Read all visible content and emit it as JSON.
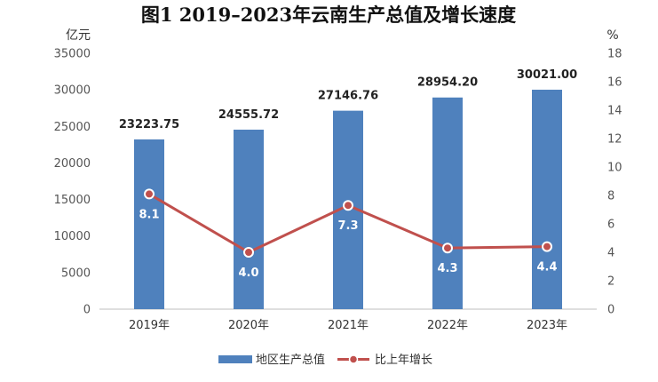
{
  "chart_data": {
    "type": "bar",
    "title": "图1  2019–2023年云南生产总值及增长速度",
    "y_left_unit": "亿元",
    "y_right_unit": "%",
    "categories": [
      "2019年",
      "2020年",
      "2021年",
      "2022年",
      "2023年"
    ],
    "y_left_ticks": [
      "0",
      "5000",
      "10000",
      "15000",
      "20000",
      "25000",
      "30000",
      "35000"
    ],
    "y_right_ticks": [
      "0",
      "2",
      "4",
      "6",
      "8",
      "10",
      "12",
      "14",
      "16",
      "18"
    ],
    "y_left_lim": [
      0,
      35000
    ],
    "y_right_lim": [
      0,
      18
    ],
    "series": [
      {
        "name": "地区生产总值",
        "type": "bar",
        "axis": "left",
        "color": "#4f81bd",
        "values": [
          23223.75,
          24555.72,
          27146.76,
          28954.2,
          30021.0
        ],
        "labels": [
          "23223.75",
          "24555.72",
          "27146.76",
          "28954.20",
          "30021.00"
        ]
      },
      {
        "name": "比上年增长",
        "type": "line",
        "axis": "right",
        "color": "#c0504d",
        "values": [
          8.1,
          4.0,
          7.3,
          4.3,
          4.4
        ],
        "labels": [
          "8.1",
          "4.0",
          "7.3",
          "4.3",
          "4.4"
        ]
      }
    ],
    "grid": false,
    "legend_position": "bottom-center"
  }
}
